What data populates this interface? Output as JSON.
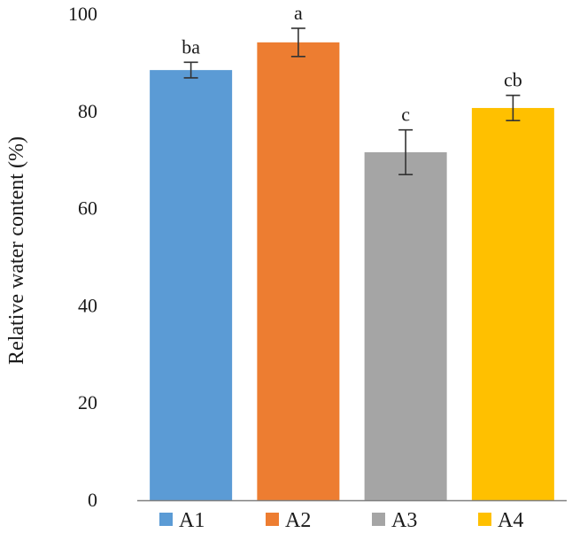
{
  "chart_data": {
    "type": "bar",
    "title": "",
    "xlabel": "",
    "ylabel": "Relative water content (%)",
    "ylim": [
      0,
      100
    ],
    "yticks": [
      0,
      20,
      40,
      60,
      80,
      100
    ],
    "grid": false,
    "legend": "bottom",
    "categories": [
      "A1",
      "A2",
      "A3",
      "A4"
    ],
    "values": [
      88.5,
      94.2,
      71.6,
      80.7
    ],
    "errors": [
      1.6,
      2.9,
      4.6,
      2.6
    ],
    "significance_letters": [
      "ba",
      "a",
      "c",
      "cb"
    ],
    "colors": [
      "#5b9bd5",
      "#ed7d31",
      "#a5a5a5",
      "#ffc000"
    ],
    "axis_color": "#808080"
  }
}
